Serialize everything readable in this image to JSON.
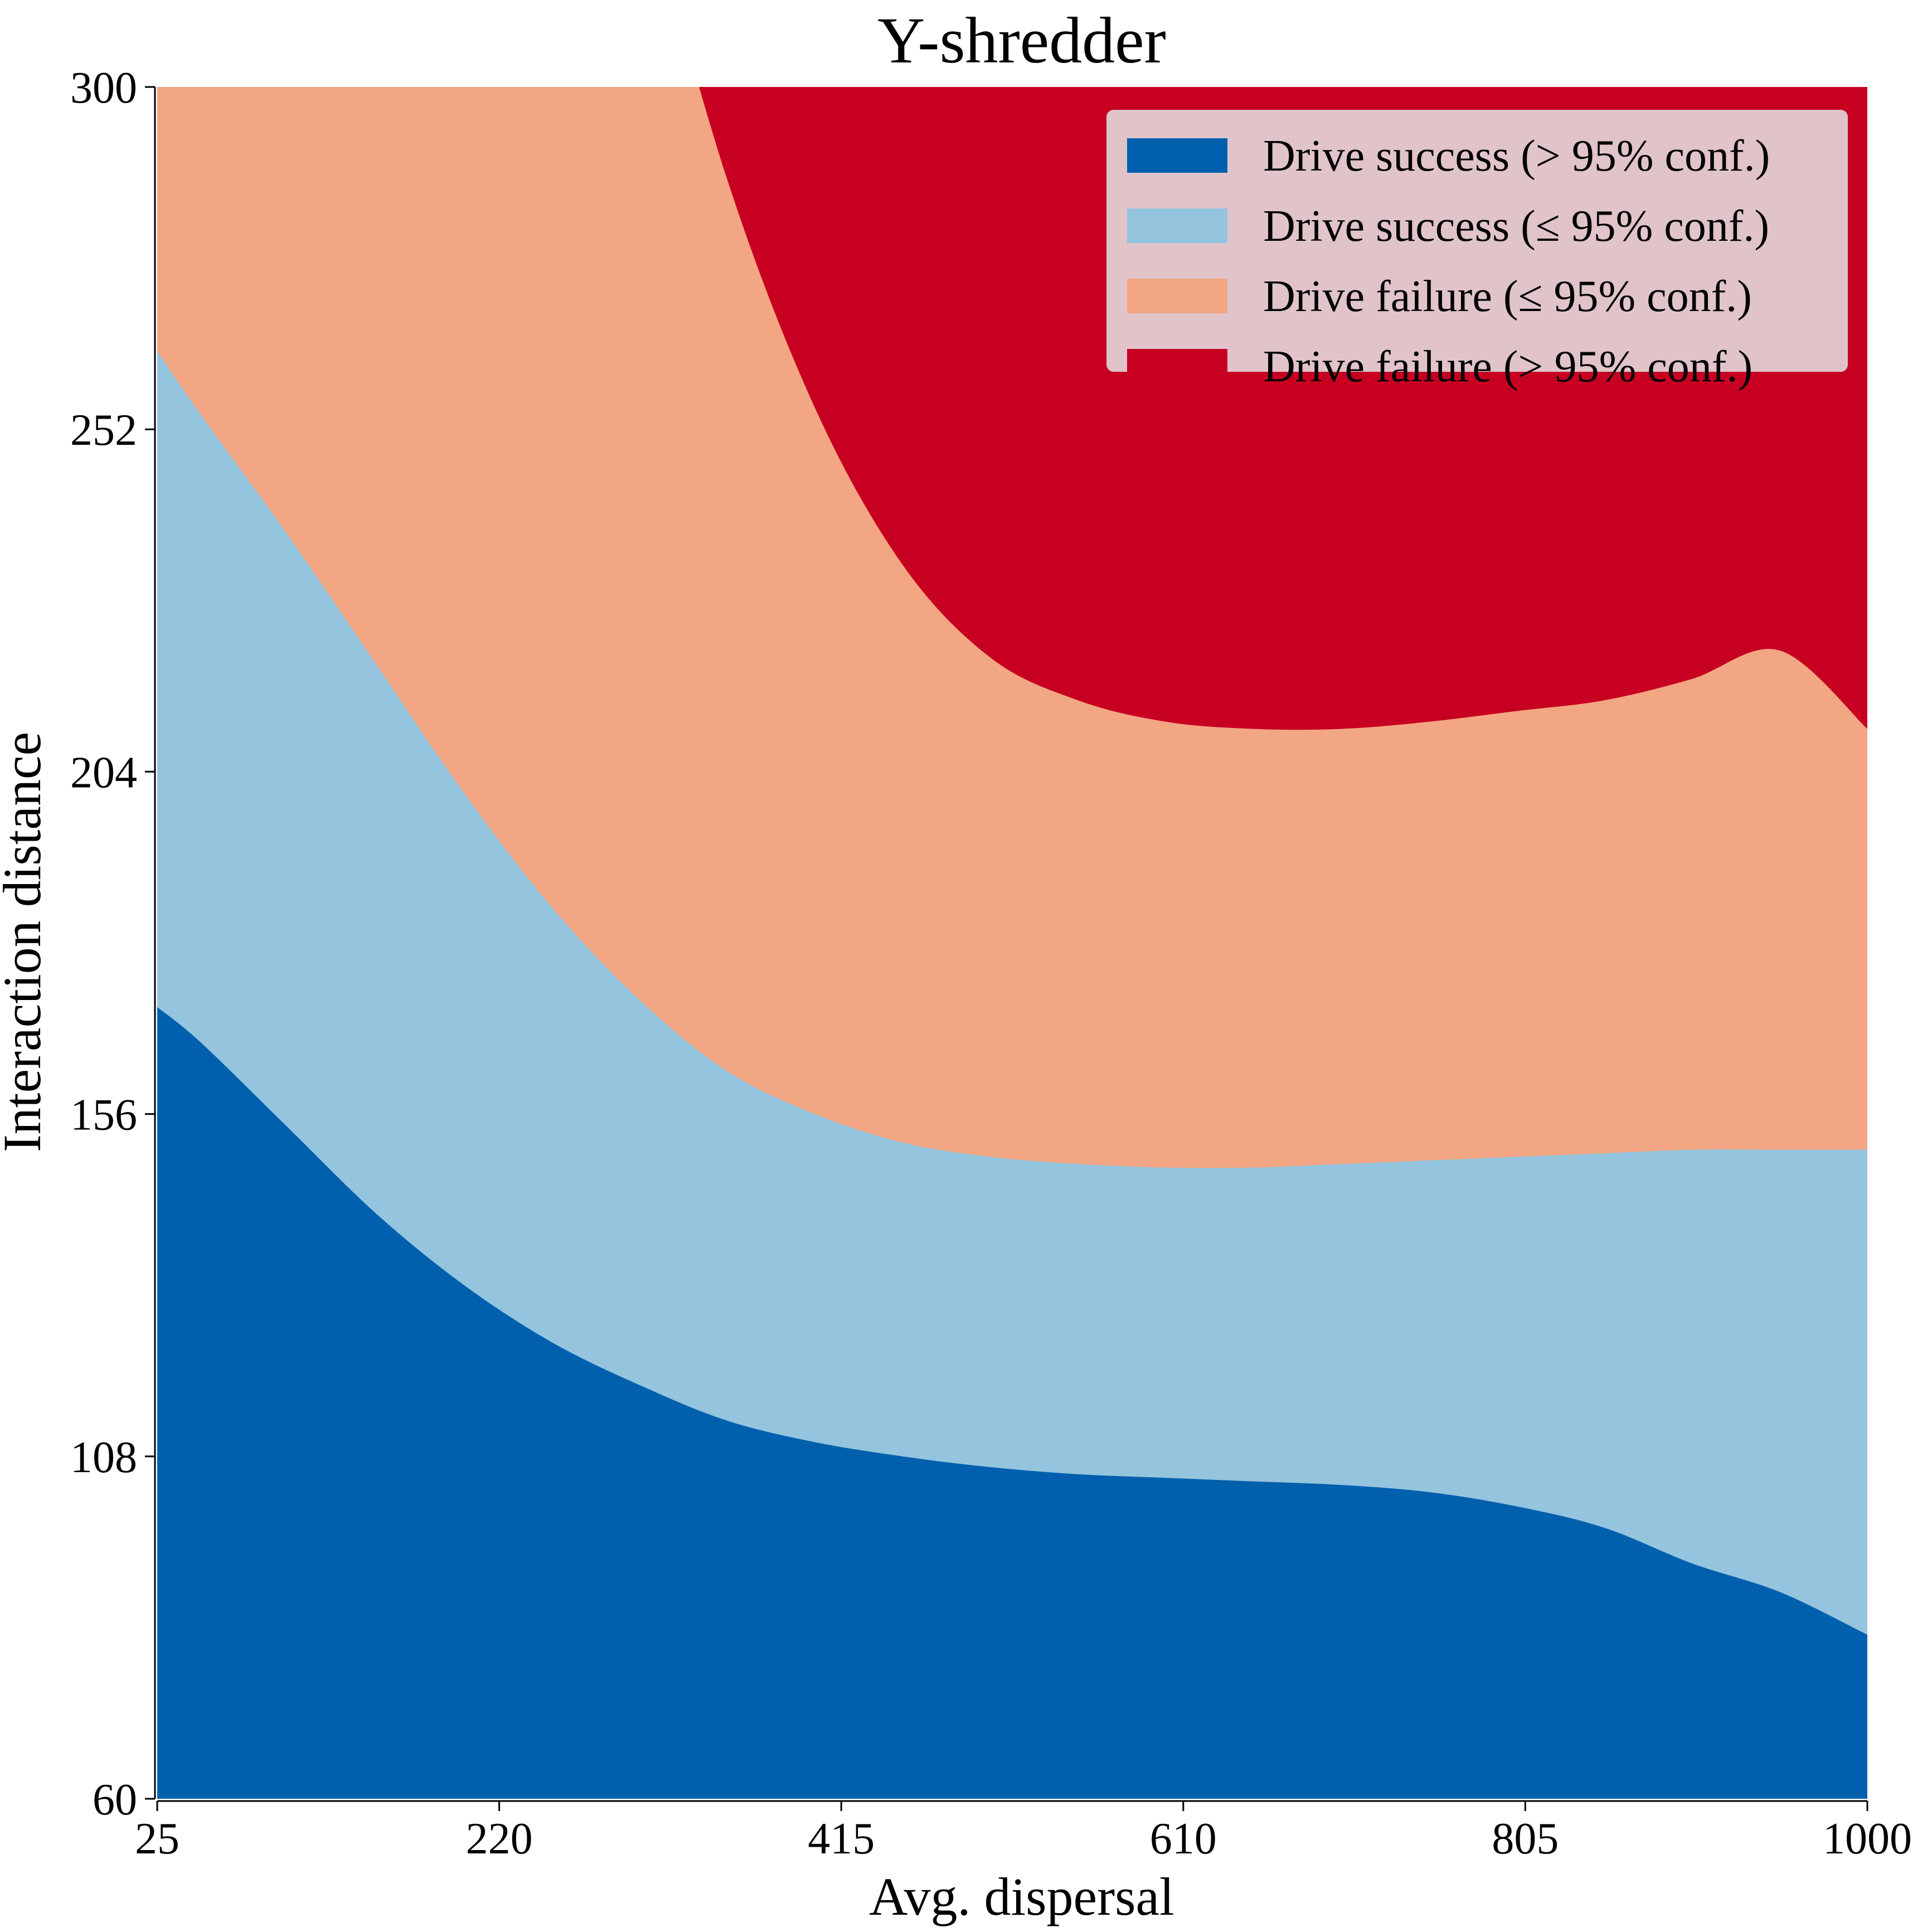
{
  "chart_data": {
    "type": "area",
    "title": "Y-shredder",
    "xlabel": "Avg. dispersal",
    "ylabel": "Interaction distance",
    "xlim": [
      25,
      1000
    ],
    "ylim": [
      60,
      300
    ],
    "xticks": [
      25,
      220,
      415,
      610,
      805,
      1000
    ],
    "yticks": [
      60,
      108,
      156,
      204,
      252,
      300
    ],
    "legend_position": "top-right",
    "x": [
      25,
      50,
      100,
      150,
      200,
      250,
      300,
      350,
      400,
      450,
      500,
      550,
      600,
      650,
      700,
      750,
      800,
      850,
      900,
      950,
      1000
    ],
    "boundaries": [
      {
        "name": "success_high_to_low",
        "y": [
          171,
          166,
          154,
          142,
          132,
          124,
          118,
          113,
          110,
          108,
          106.5,
          105.5,
          105,
          104.5,
          104,
          103,
          101,
          98,
          93,
          89,
          83
        ]
      },
      {
        "name": "success_to_failure",
        "y": [
          263,
          254,
          237,
          219,
          201,
          185,
          172,
          162,
          156,
          152,
          150,
          149,
          148.5,
          148.5,
          149,
          149.5,
          150,
          150.5,
          151,
          151,
          151
        ]
      },
      {
        "name": "failure_low_to_high",
        "y": [
          null,
          null,
          null,
          null,
          null,
          null,
          330,
          287,
          255,
          233,
          220,
          214,
          211,
          210,
          210,
          211,
          212.5,
          214,
          217,
          221,
          210
        ]
      }
    ],
    "series": [
      {
        "name": "Drive success (> 95% conf.)",
        "color": "#0060ae"
      },
      {
        "name": "Drive success (≤ 95% conf.)",
        "color": "#94c4de"
      },
      {
        "name": "Drive failure (≤ 95% conf.)",
        "color": "#f3a683"
      },
      {
        "name": "Drive failure (> 95% conf.)",
        "color": "#c70021"
      }
    ],
    "legend_bg": "#e1cfd4"
  }
}
